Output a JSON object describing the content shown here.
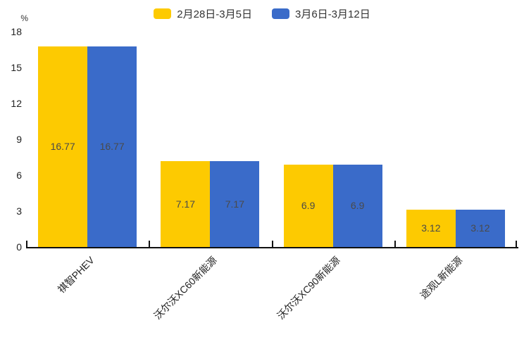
{
  "chart_data": {
    "type": "bar",
    "title": "",
    "xlabel": "",
    "ylabel": "%",
    "ylim": [
      0,
      18
    ],
    "yticks": [
      0,
      3,
      6,
      9,
      12,
      15,
      18
    ],
    "grid": false,
    "legend_position": "top",
    "categories": [
      "祺智PHEV",
      "沃尔沃XC60新能源",
      "沃尔沃XC90新能源",
      "途观L新能源"
    ],
    "series": [
      {
        "name": "2月28日-3月5日",
        "color": "#FDCA01",
        "values": [
          16.77,
          7.17,
          6.9,
          3.12
        ]
      },
      {
        "name": "3月6日-3月12日",
        "color": "#3A6BC9",
        "values": [
          16.77,
          7.17,
          6.9,
          3.12
        ]
      }
    ]
  },
  "colors": {
    "background": "#ffffff",
    "axis": "#111111",
    "tick_label": "#222222",
    "value_label": "#4a4a4a"
  }
}
